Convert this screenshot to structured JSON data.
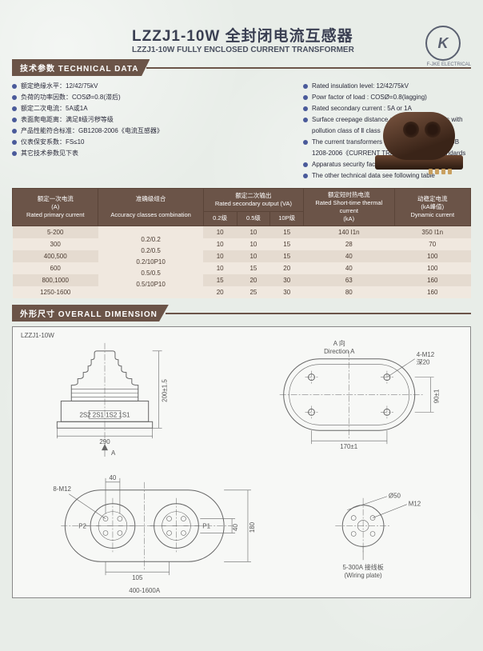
{
  "header": {
    "title_cn": "LZZJ1-10W 全封闭电流互感器",
    "title_en": "LZZJ1-10W  FULLY ENCLOSED CURRENT TRANSFORMER",
    "logo_letter": "K",
    "logo_text": "F-JKE ELECTRICAL"
  },
  "sections": {
    "tech": "技术参数  TECHNICAL DATA",
    "dim": "外形尺寸  OVERALL DIMENSION"
  },
  "specs_cn": [
    "额定绝缘水平：12/42/75kV",
    "负荷的功率因数：COSØ=0.8(滞后)",
    "额定二次电流：5A或1A",
    "表面爬电距离：满足Ⅱ级污秽等级",
    "产品性能符合标准：GB1208-2006《电流互感器》",
    "仪表保安系数：FS≤10",
    "其它技术参数见下表"
  ],
  "specs_en": [
    "Rated insulation level: 12/42/75kV",
    "Powr factor of load : COSØ=0.8(lagging)",
    "Rated secondary current : 5A or 1A",
    "Surface creepage distance : the product accords with pollution class of Ⅱ class",
    "The current transformers are in accordance with GB 1208-2006《CURRENT TRANSFORMER》standards",
    "Apparatus security factor : FS≤10",
    "The other technical data see following table"
  ],
  "table": {
    "headers": {
      "c1a": "额定一次电流",
      "c1b": "(A)",
      "c1c": "Rated primary current",
      "c2a": "准确级组合",
      "c2b": "Accuracy classes combination",
      "c3a": "额定二次输出",
      "c3b": "Rated secondary output (VA)",
      "c3s1": "0.2级",
      "c3s2": "0.5级",
      "c3s3": "10P级",
      "c4a": "额定短时热电流",
      "c4b": "Rated Short-time thermal current",
      "c4c": "(kA)",
      "c5a": "动稳定电流",
      "c5b": "Dynamic current",
      "c5c": "(kA峰值)"
    },
    "acc": [
      "0.2/0.2",
      "0.2/0.5",
      "0.2/10P10",
      "0.5/0.5",
      "0.5/10P10"
    ],
    "rows": [
      {
        "c1": "5-200",
        "o1": "10",
        "o2": "10",
        "o3": "15",
        "t": "140 I1n",
        "d": "350 I1n"
      },
      {
        "c1": "300",
        "o1": "10",
        "o2": "10",
        "o3": "15",
        "t": "28",
        "d": "70"
      },
      {
        "c1": "400,500",
        "o1": "10",
        "o2": "10",
        "o3": "15",
        "t": "40",
        "d": "100"
      },
      {
        "c1": "600",
        "o1": "10",
        "o2": "15",
        "o3": "20",
        "t": "40",
        "d": "100"
      },
      {
        "c1": "800,1000",
        "o1": "15",
        "o2": "20",
        "o3": "30",
        "t": "63",
        "d": "160"
      },
      {
        "c1": "1250-1600",
        "o1": "20",
        "o2": "25",
        "o3": "30",
        "t": "80",
        "d": "160"
      }
    ]
  },
  "drawing": {
    "model": "LZZJ1-10W",
    "d290": "290",
    "d200": "200±1.5",
    "d_dirA_cn": "A 向",
    "d_dirA_en": "Direction A",
    "d4m12": "4-M12",
    "ddeep20": "深20",
    "d170": "170±1",
    "d90": "90±1",
    "d8m12": "8-M12",
    "d40": "40",
    "d105": "105",
    "d180": "180",
    "d400": "400-1600A",
    "dp1": "P1",
    "dp2": "P2",
    "do50": "Ø50",
    "dm12": "M12",
    "dwire_cn": "5-300A 接线板",
    "dwire_en": "(Wiring plate)",
    "dA": "A",
    "terms": "2S2 2S1 1S2 1S1"
  },
  "colors": {
    "bar": "#6b5448",
    "bg": "#e8ede8",
    "row1": "#e5dbd0",
    "row2": "#f0e8df",
    "header_text": "#3a3f52",
    "bullet": "#4a5a9a"
  }
}
